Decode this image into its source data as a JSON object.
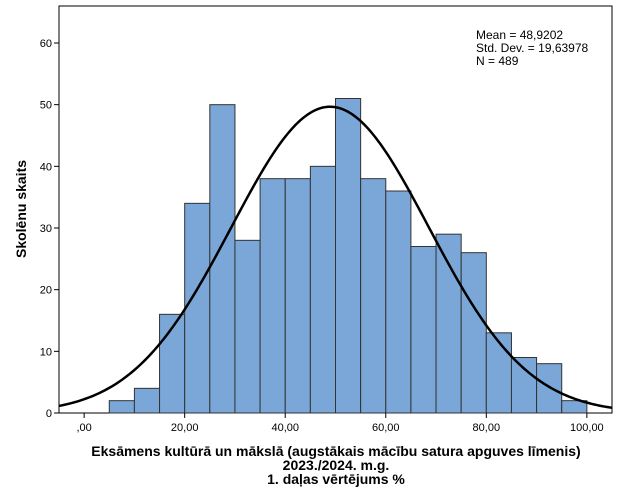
{
  "chart_data": {
    "type": "bar",
    "subtype": "histogram",
    "xlabel_lines": [
      "Eksāmens kultūrā un mākslā (augstākais mācību satura apguves līmenis)",
      "2023./2024. m.g.",
      "1. daļas vērtējums %"
    ],
    "ylabel": "Skolēnu skaits",
    "xlim": [
      -5,
      105
    ],
    "ylim": [
      0,
      66
    ],
    "x_ticks": [
      0,
      20,
      40,
      60,
      80,
      100
    ],
    "x_tick_labels": [
      ",00",
      "20,00",
      "40,00",
      "60,00",
      "80,00",
      "100,00"
    ],
    "y_ticks": [
      0,
      10,
      20,
      30,
      40,
      50,
      60
    ],
    "y_tick_labels": [
      "0",
      "10",
      "20",
      "30",
      "40",
      "50",
      "60"
    ],
    "bin_width": 5,
    "bin_starts": [
      5,
      10,
      15,
      20,
      25,
      30,
      35,
      40,
      45,
      50,
      55,
      60,
      65,
      70,
      75,
      80,
      85,
      90,
      95
    ],
    "values": [
      2,
      4,
      16,
      34,
      50,
      28,
      38,
      38,
      40,
      51,
      38,
      36,
      27,
      29,
      26,
      13,
      9,
      8,
      2
    ],
    "bar_color": "#7aa7d7",
    "bar_edge_color": "#333333",
    "curve_color": "#000000",
    "stats": {
      "mean_text": "Mean = 48,9202",
      "std_text": "Std. Dev. = 19,63978",
      "n_text": "N = 489",
      "mean": 48.9202,
      "std": 19.63978,
      "n": 489
    },
    "grid": false,
    "normal_curve": true
  }
}
